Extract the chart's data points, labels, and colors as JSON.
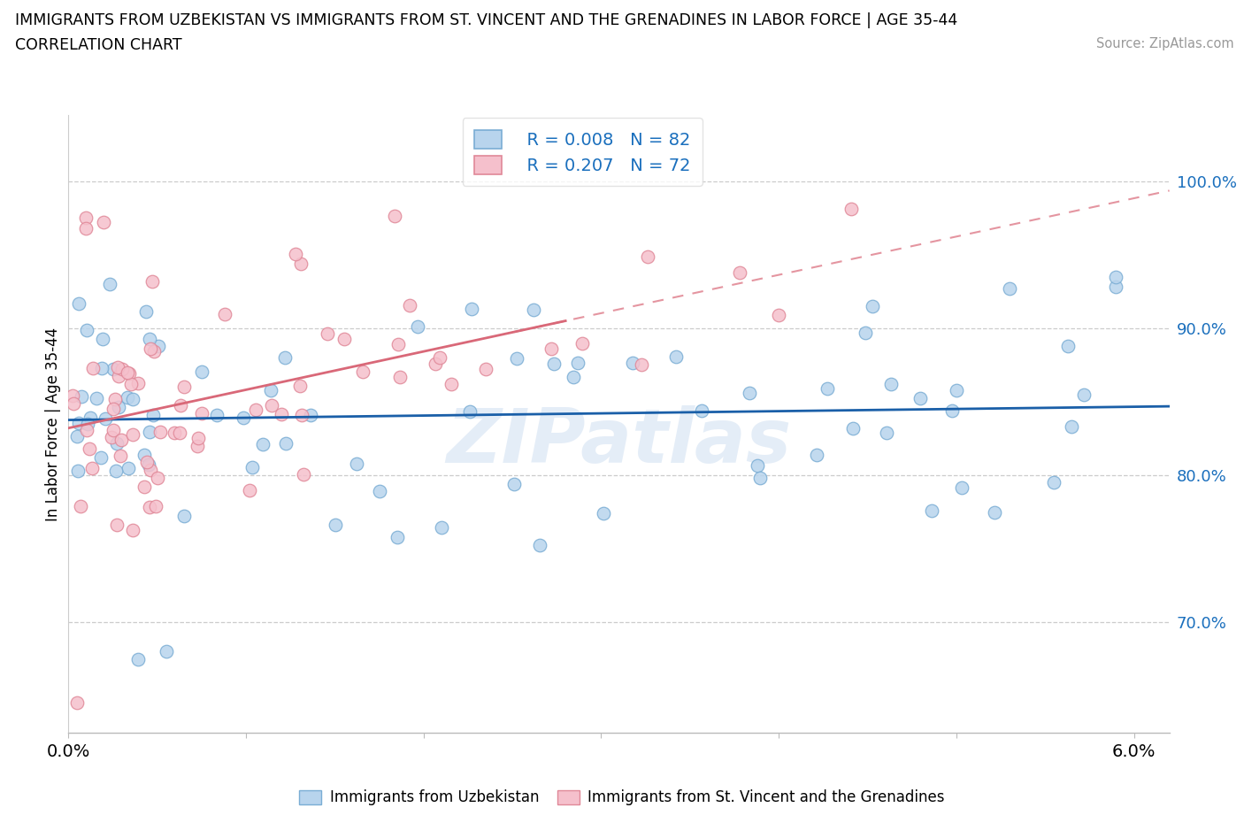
{
  "title_line1": "IMMIGRANTS FROM UZBEKISTAN VS IMMIGRANTS FROM ST. VINCENT AND THE GRENADINES IN LABOR FORCE | AGE 35-44",
  "title_line2": "CORRELATION CHART",
  "source_text": "Source: ZipAtlas.com",
  "ylabel": "In Labor Force | Age 35-44",
  "xlim": [
    0.0,
    0.062
  ],
  "ylim": [
    0.625,
    1.045
  ],
  "ytick_vals": [
    0.7,
    0.8,
    0.9,
    1.0
  ],
  "xtick_vals": [
    0.0,
    0.01,
    0.02,
    0.03,
    0.04,
    0.05,
    0.06
  ],
  "uzbekistan_fill": "#b8d4ed",
  "uzbekistan_edge": "#7aadd4",
  "vincent_fill": "#f5c0cc",
  "vincent_edge": "#e08898",
  "uzbekistan_line": "#1a5fa8",
  "vincent_line": "#d96878",
  "R_uzbekistan": 0.008,
  "N_uzbekistan": 82,
  "R_vincent": 0.207,
  "N_vincent": 72,
  "watermark": "ZIPatlas",
  "legend_color": "#1a6fbd",
  "bottom_uzb_label": "Immigrants from Uzbekistan",
  "bottom_vin_label": "Immigrants from St. Vincent and the Grenadines"
}
